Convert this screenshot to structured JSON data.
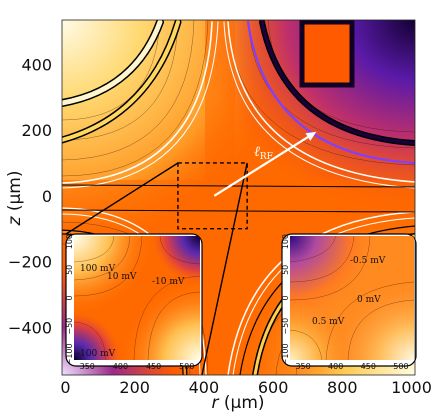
{
  "chart_data": [
    {
      "type": "heatmap",
      "role": "main",
      "xlabel": "r (μm)",
      "ylabel": "z (μm)",
      "xlim": [
        -10,
        1010
      ],
      "ylim": [
        -545,
        535
      ],
      "x_ticks": [
        0,
        200,
        400,
        600,
        800,
        1000
      ],
      "y_ticks": [
        -400,
        -200,
        0,
        200,
        400
      ],
      "annotation": "ℓ_RF",
      "annotation_arrow": {
        "from": [
          430,
          0
        ],
        "to": [
          725,
          195
        ]
      },
      "zoom_box": {
        "r": [
          325,
          525
        ],
        "z": [
          -100,
          100
        ]
      },
      "colors": {
        "high": "#ffffee",
        "mid": "#ff6600",
        "low": "#1a0040",
        "electrode": "#000000"
      }
    },
    {
      "type": "heatmap",
      "role": "inset-left",
      "xlim": [
        330,
        520
      ],
      "ylim": [
        -110,
        110
      ],
      "x_ticks": [
        350,
        400,
        450,
        500
      ],
      "y_ticks": [
        -100,
        -50,
        0,
        50,
        100
      ],
      "contour_labels": [
        "100 mV",
        "10 mV",
        "-10 mV",
        "-100 mV"
      ]
    },
    {
      "type": "heatmap",
      "role": "inset-right",
      "xlim": [
        330,
        520
      ],
      "ylim": [
        -110,
        110
      ],
      "x_ticks": [
        350,
        400,
        450,
        500
      ],
      "y_ticks": [
        -100,
        -50,
        0,
        50,
        100
      ],
      "contour_labels": [
        "-0.5 mV",
        "0 mV",
        "0.5 mV"
      ]
    }
  ],
  "labels": {
    "xlabel_italic": "r",
    "xlabel_unit": " (μm)",
    "ylabel_italic": "z",
    "ylabel_unit": " (μm)",
    "lrf_main": "ℓ",
    "lrf_sub": "RF"
  }
}
